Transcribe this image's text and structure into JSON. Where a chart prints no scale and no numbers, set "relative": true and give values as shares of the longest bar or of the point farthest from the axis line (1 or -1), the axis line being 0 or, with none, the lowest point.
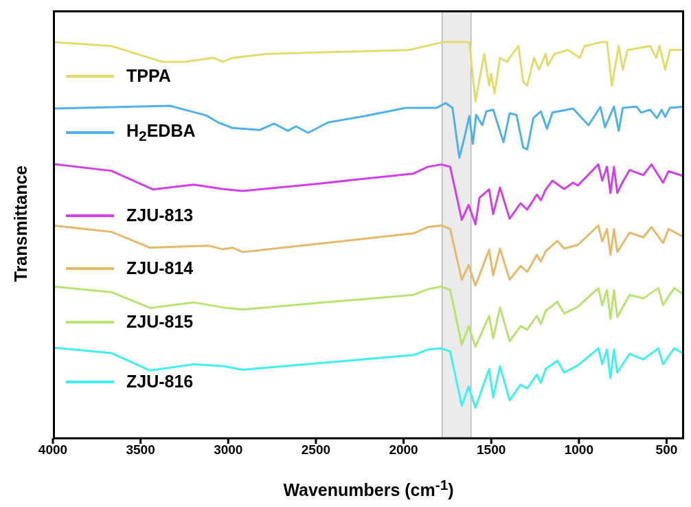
{
  "chart_data": {
    "type": "line",
    "xlabel": "Wavenumbers (cm$^{-1}$)",
    "ylabel": "Transmittance",
    "relative": true,
    "legend": "left",
    "xlim": [
      4000,
      400
    ],
    "xticks": [
      4000,
      3500,
      3000,
      2500,
      2000,
      1500,
      1000,
      500
    ],
    "bands": [
      {
        "axis": "x",
        "from": 1780,
        "to": 1615,
        "color": "#ebebeb"
      }
    ],
    "series": [
      {
        "name": "TPPA",
        "color": "#e3dc6c",
        "x": [
          4000,
          3667,
          3376,
          3251,
          3084,
          3029,
          2975,
          2780,
          1967,
          1773,
          1625,
          1590,
          1540,
          1512,
          1501,
          1481,
          1450,
          1411,
          1345,
          1318,
          1295,
          1256,
          1228,
          1189,
          1178,
          1139,
          1061,
          995,
          968,
          867,
          840,
          812,
          773,
          750,
          723,
          594,
          559,
          540,
          508,
          481,
          400
        ],
        "values": [
          1.0,
          0.99,
          0.95,
          0.95,
          0.96,
          0.95,
          0.96,
          0.97,
          0.98,
          1.0,
          1.0,
          0.85,
          0.97,
          0.89,
          0.92,
          0.87,
          0.96,
          0.95,
          0.99,
          0.9,
          0.89,
          0.96,
          0.93,
          0.97,
          0.94,
          0.97,
          0.98,
          0.96,
          0.99,
          1.0,
          1.0,
          0.89,
          0.99,
          0.93,
          0.98,
          0.99,
          0.96,
          0.99,
          0.93,
          0.98,
          0.98
        ]
      },
      {
        "name": "H$_{2}$EDBA",
        "color": "#4fb1ea",
        "x": [
          4000,
          3332,
          3127,
          3057,
          2975,
          2820,
          2738,
          2660,
          2614,
          2544,
          2431,
          2224,
          1987,
          1811,
          1760,
          1721,
          1682,
          1655,
          1625,
          1605,
          1586,
          1551,
          1528,
          1489,
          1430,
          1395,
          1356,
          1318,
          1295,
          1260,
          1217,
          1182,
          1151,
          1034,
          945,
          878,
          851,
          800,
          773,
          750,
          672,
          645,
          594,
          555,
          528,
          508,
          481,
          400
        ],
        "values": [
          0.832,
          0.839,
          0.815,
          0.797,
          0.783,
          0.778,
          0.794,
          0.776,
          0.787,
          0.771,
          0.797,
          0.813,
          0.834,
          0.834,
          0.846,
          0.834,
          0.708,
          0.755,
          0.813,
          0.743,
          0.816,
          0.79,
          0.825,
          0.829,
          0.747,
          0.82,
          0.816,
          0.734,
          0.729,
          0.808,
          0.825,
          0.781,
          0.822,
          0.832,
          0.79,
          0.836,
          0.785,
          0.837,
          0.776,
          0.834,
          0.837,
          0.822,
          0.829,
          0.808,
          0.829,
          0.811,
          0.834,
          0.837
        ]
      },
      {
        "name": "ZJU-813",
        "color": "#d13fe6",
        "x": [
          4000,
          3667,
          3430,
          3197,
          3029,
          2917,
          2500,
          1944,
          1862,
          1784,
          1734,
          1668,
          1629,
          1590,
          1567,
          1512,
          1489,
          1450,
          1395,
          1333,
          1295,
          1240,
          1217,
          1189,
          1151,
          1084,
          1034,
          1006,
          889,
          867,
          840,
          820,
          800,
          781,
          750,
          711,
          633,
          586,
          520,
          489,
          400
        ],
        "values": [
          0.692,
          0.675,
          0.628,
          0.64,
          0.629,
          0.624,
          0.642,
          0.668,
          0.685,
          0.691,
          0.685,
          0.551,
          0.589,
          0.54,
          0.607,
          0.628,
          0.566,
          0.633,
          0.554,
          0.593,
          0.577,
          0.615,
          0.601,
          0.628,
          0.65,
          0.629,
          0.645,
          0.638,
          0.691,
          0.65,
          0.685,
          0.619,
          0.685,
          0.619,
          0.647,
          0.677,
          0.664,
          0.691,
          0.645,
          0.674,
          0.661
        ]
      },
      {
        "name": "ZJU-814",
        "color": "#e4b96a",
        "x": [
          4000,
          3667,
          3446,
          3111,
          3029,
          2975,
          2917,
          2500,
          1967,
          1944,
          1862,
          1784,
          1734,
          1668,
          1629,
          1590,
          1512,
          1489,
          1450,
          1395,
          1333,
          1295,
          1240,
          1217,
          1189,
          1123,
          1084,
          1006,
          889,
          867,
          840,
          820,
          800,
          781,
          711,
          633,
          586,
          520,
          489,
          400
        ],
        "values": [
          0.537,
          0.521,
          0.481,
          0.486,
          0.477,
          0.481,
          0.47,
          0.49,
          0.516,
          0.517,
          0.533,
          0.537,
          0.528,
          0.4,
          0.437,
          0.385,
          0.476,
          0.411,
          0.479,
          0.4,
          0.435,
          0.42,
          0.463,
          0.446,
          0.472,
          0.498,
          0.479,
          0.488,
          0.537,
          0.497,
          0.528,
          0.463,
          0.528,
          0.47,
          0.519,
          0.507,
          0.533,
          0.493,
          0.528,
          0.507
        ]
      },
      {
        "name": "ZJU-815",
        "color": "#b7e36e",
        "x": [
          4000,
          3667,
          3446,
          3197,
          3029,
          2917,
          2500,
          1944,
          1862,
          1784,
          1734,
          1668,
          1629,
          1590,
          1512,
          1489,
          1450,
          1395,
          1333,
          1295,
          1240,
          1217,
          1189,
          1123,
          1084,
          1006,
          889,
          867,
          840,
          820,
          800,
          781,
          711,
          633,
          547,
          520,
          457,
          400
        ],
        "values": [
          0.383,
          0.369,
          0.329,
          0.343,
          0.33,
          0.325,
          0.341,
          0.362,
          0.376,
          0.383,
          0.374,
          0.236,
          0.283,
          0.231,
          0.309,
          0.252,
          0.33,
          0.245,
          0.283,
          0.274,
          0.309,
          0.288,
          0.322,
          0.344,
          0.315,
          0.332,
          0.379,
          0.336,
          0.374,
          0.301,
          0.374,
          0.306,
          0.362,
          0.353,
          0.379,
          0.336,
          0.379,
          0.362
        ]
      },
      {
        "name": "ZJU-816",
        "color": "#3ff0ee",
        "x": [
          4000,
          3667,
          3446,
          3197,
          3029,
          2917,
          2500,
          1944,
          1862,
          1784,
          1734,
          1668,
          1629,
          1590,
          1512,
          1489,
          1450,
          1395,
          1333,
          1295,
          1240,
          1217,
          1189,
          1123,
          1084,
          1006,
          889,
          867,
          840,
          820,
          800,
          781,
          711,
          633,
          547,
          520,
          457,
          400
        ],
        "values": [
          0.229,
          0.215,
          0.171,
          0.187,
          0.182,
          0.173,
          0.189,
          0.21,
          0.224,
          0.227,
          0.219,
          0.082,
          0.131,
          0.077,
          0.175,
          0.103,
          0.182,
          0.096,
          0.135,
          0.126,
          0.161,
          0.14,
          0.175,
          0.196,
          0.166,
          0.184,
          0.227,
          0.187,
          0.224,
          0.152,
          0.224,
          0.166,
          0.213,
          0.199,
          0.227,
          0.187,
          0.227,
          0.213
        ]
      }
    ]
  }
}
